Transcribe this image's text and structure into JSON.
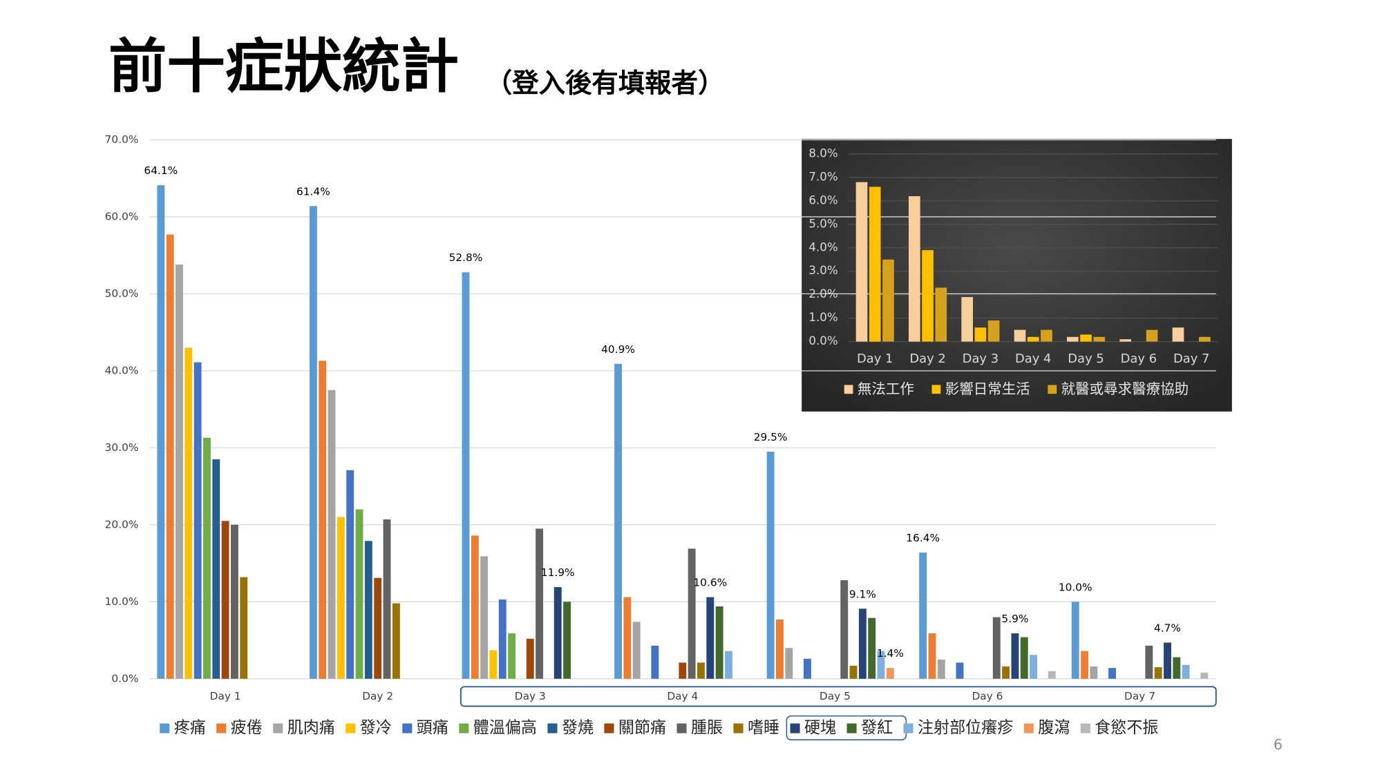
{
  "title": "前十症狀統計",
  "subtitle": "（登入後有填報者）",
  "page_number": 6,
  "chart_data": [
    {
      "type": "bar",
      "categories": [
        "Day 1",
        "Day 2",
        "Day 3",
        "Day 4",
        "Day 5",
        "Day 6",
        "Day 7"
      ],
      "ylim": [
        0,
        70
      ],
      "yticks": [
        {
          "value": 0,
          "label": "0.0%"
        },
        {
          "value": 10,
          "label": "10.0%"
        },
        {
          "value": 20,
          "label": "20.0%"
        },
        {
          "value": 30,
          "label": "30.0%"
        },
        {
          "value": 40,
          "label": "40.0%"
        },
        {
          "value": 50,
          "label": "50.0%"
        },
        {
          "value": 60,
          "label": "60.0%"
        },
        {
          "value": 70,
          "label": "70.0%"
        }
      ],
      "grid": true,
      "legend": "bottom",
      "series": [
        {
          "name": "疼痛",
          "color": "#5b9bd5",
          "values": [
            64.1,
            61.4,
            52.8,
            40.9,
            29.5,
            16.4,
            10.0
          ],
          "value_labels": [
            "64.1%",
            "61.4%",
            "52.8%",
            "40.9%",
            "29.5%",
            "16.4%",
            "10.0%"
          ]
        },
        {
          "name": "疲倦",
          "color": "#ed7d31",
          "values": [
            57.7,
            41.3,
            18.6,
            10.6,
            7.7,
            5.9,
            3.6
          ]
        },
        {
          "name": "肌肉痛",
          "color": "#a5a5a5",
          "values": [
            53.8,
            37.5,
            15.9,
            7.4,
            4.0,
            2.5,
            1.6
          ]
        },
        {
          "name": "發冷",
          "color": "#ffc000",
          "values": [
            43.0,
            21.0,
            3.7,
            null,
            null,
            null,
            null
          ]
        },
        {
          "name": "頭痛",
          "color": "#4472c4",
          "values": [
            41.1,
            27.1,
            10.3,
            4.3,
            2.6,
            2.1,
            1.4
          ]
        },
        {
          "name": "體溫偏高",
          "color": "#70ad47",
          "values": [
            31.3,
            22.0,
            5.9,
            null,
            null,
            null,
            null
          ]
        },
        {
          "name": "發燒",
          "color": "#255e91",
          "values": [
            28.5,
            17.9,
            null,
            null,
            null,
            null,
            null
          ]
        },
        {
          "name": "關節痛",
          "color": "#9e480e",
          "values": [
            20.5,
            13.1,
            5.2,
            2.1,
            null,
            null,
            null
          ]
        },
        {
          "name": "腫脹",
          "color": "#636363",
          "values": [
            20.0,
            20.7,
            19.5,
            16.9,
            12.8,
            8.0,
            4.3
          ]
        },
        {
          "name": "嗜睡",
          "color": "#997300",
          "values": [
            13.2,
            9.8,
            null,
            2.1,
            1.7,
            1.6,
            1.5
          ]
        },
        {
          "name": "硬塊",
          "color": "#264478",
          "values": [
            null,
            null,
            11.9,
            10.6,
            9.1,
            5.9,
            4.7
          ],
          "value_labels": [
            null,
            null,
            "11.9%",
            "10.6%",
            "9.1%",
            "5.9%",
            "4.7%"
          ]
        },
        {
          "name": "發紅",
          "color": "#43682b",
          "values": [
            null,
            null,
            10.0,
            9.4,
            7.9,
            5.4,
            2.8
          ]
        },
        {
          "name": "注射部位癢疹",
          "color": "#7cafdd",
          "values": [
            null,
            null,
            null,
            3.6,
            3.6,
            3.1,
            1.8
          ]
        },
        {
          "name": "腹瀉",
          "color": "#f1975a",
          "values": [
            null,
            null,
            null,
            null,
            1.4,
            null,
            null
          ],
          "value_labels": [
            null,
            null,
            null,
            null,
            "1.4%",
            null,
            null
          ]
        },
        {
          "name": "食慾不振",
          "color": "#b7b7b7",
          "values": [
            null,
            null,
            null,
            null,
            null,
            1.0,
            0.8
          ]
        }
      ]
    },
    {
      "type": "bar",
      "categories": [
        "Day 1",
        "Day 2",
        "Day 3",
        "Day 4",
        "Day 5",
        "Day 6",
        "Day 7"
      ],
      "ylim": [
        0,
        8
      ],
      "yticks": [
        {
          "value": 0,
          "label": "0.0%"
        },
        {
          "value": 1,
          "label": "1.0%"
        },
        {
          "value": 2,
          "label": "2.0%"
        },
        {
          "value": 3,
          "label": "3.0%"
        },
        {
          "value": 4,
          "label": "4.0%"
        },
        {
          "value": 5,
          "label": "5.0%"
        },
        {
          "value": 6,
          "label": "6.0%"
        },
        {
          "value": 7,
          "label": "7.0%"
        },
        {
          "value": 8,
          "label": "8.0%"
        }
      ],
      "grid": true,
      "legend": "bottom",
      "series": [
        {
          "name": "無法工作",
          "color": "#f8cf9c",
          "values": [
            6.8,
            6.2,
            1.9,
            0.5,
            0.2,
            0.1,
            0.6
          ]
        },
        {
          "name": "影響日常生活",
          "color": "#ffc000",
          "values": [
            6.6,
            3.9,
            0.6,
            0.2,
            0.3,
            null,
            null
          ]
        },
        {
          "name": "就醫或尋求醫療協助",
          "color": "#d6a21e",
          "values": [
            3.5,
            2.3,
            0.9,
            0.5,
            0.2,
            0.5,
            0.2
          ]
        }
      ]
    }
  ]
}
